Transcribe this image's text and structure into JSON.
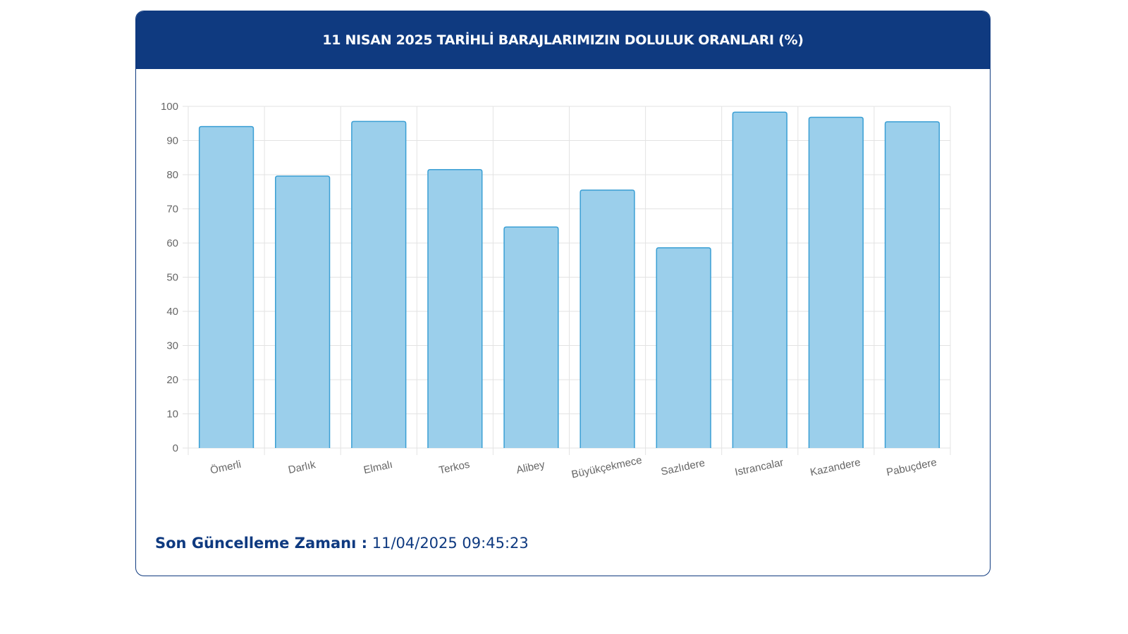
{
  "header": {
    "title": "11 NISAN 2025 TARİHLİ BARAJLARIMIZIN DOLULUK ORANLARI (%)"
  },
  "footer": {
    "label": "Son Güncelleme Zamanı :",
    "value": "11/04/2025 09:45:23"
  },
  "chart_data": {
    "type": "bar",
    "title": "11 NISAN 2025 TARİHLİ BARAJLARIMIZIN DOLULUK ORANLARI (%)",
    "xlabel": "",
    "ylabel": "",
    "categories": [
      "Ömerli",
      "Darlık",
      "Elmalı",
      "Terkos",
      "Alibey",
      "Büyükçekmece",
      "Sazlıdere",
      "Istrancalar",
      "Kazandere",
      "Pabuçdere"
    ],
    "values": [
      94.1,
      79.6,
      95.6,
      81.5,
      64.7,
      75.5,
      58.6,
      98.3,
      96.8,
      95.5
    ],
    "ylim": [
      0,
      100
    ],
    "yticks": [
      "0",
      "10",
      "20",
      "30",
      "40",
      "50",
      "60",
      "70",
      "80",
      "90",
      "100"
    ],
    "grid": true,
    "legend": "none",
    "colors": {
      "bar_fill": "#9bcfeb",
      "bar_stroke": "#3a9fd4",
      "grid": "#e3e3e3",
      "tick_text": "#666666"
    }
  }
}
